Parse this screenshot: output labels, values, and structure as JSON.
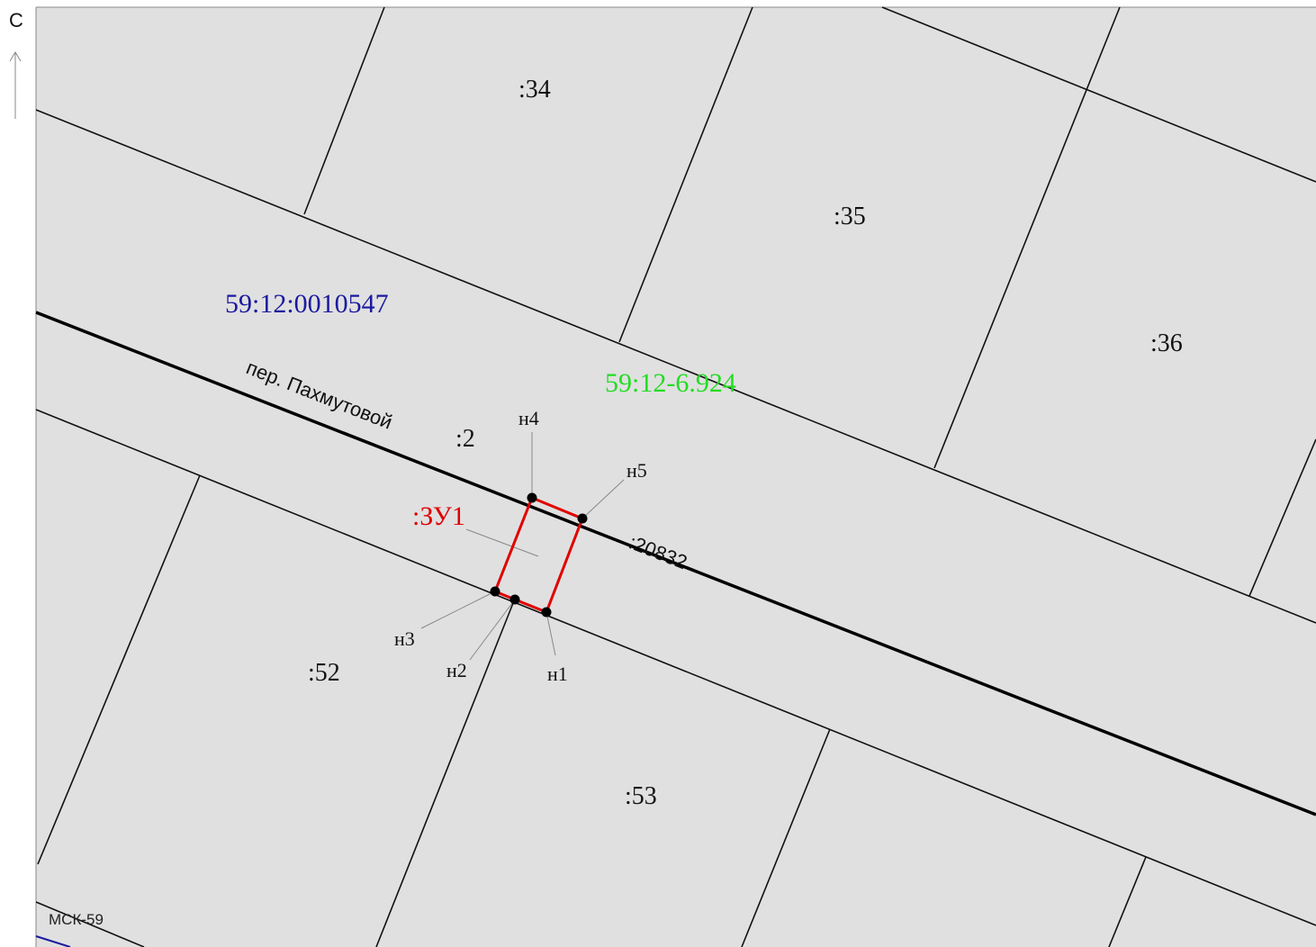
{
  "north_arrow": {
    "label": "С"
  },
  "crs_label": "МСК-59",
  "quarter_number": "59:12:0010547",
  "zone_number": "59:12-6.924",
  "street_name": "пер. Пахмутовой",
  "parcels": {
    "p34": ":34",
    "p35": ":35",
    "p36": ":36",
    "p2": ":2",
    "p52": ":52",
    "p53": ":53",
    "p20832": ":20832"
  },
  "new_parcel": {
    "label": ":ЗУ1",
    "color": "#e00000"
  },
  "points": {
    "n1": "н1",
    "n2": "н2",
    "n3": "н3",
    "n4": "н4",
    "n5": "н5"
  },
  "colors": {
    "background": "#e0e0e0",
    "quarter_label": "#1a1aa0",
    "zone_label": "#22dd22",
    "boundary": "#111111"
  }
}
